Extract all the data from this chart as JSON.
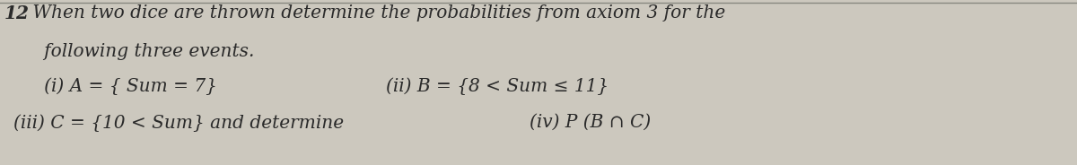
{
  "background_color": "#ccc8be",
  "text_color": "#2a2a2a",
  "line1_number": "12",
  "line1_text": " When two dice are thrown determine the probabilities from axiom 3 for the",
  "line2_text": "   following three events.",
  "line3_left": "   (i) A = { Sum = 7}",
  "line3_right": "(ii) B = {8 < Sum ≤ 11}",
  "line4_left": "(iii) C = {10 < Sum} and determine",
  "line4_right": "(iv) P (B ∩ C)",
  "top_border_color": "#888880",
  "font_size_main": 14.5,
  "font_size_items": 14.5
}
